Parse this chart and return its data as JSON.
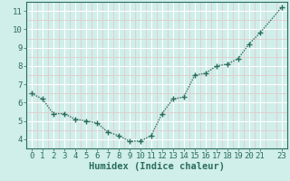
{
  "x": [
    0,
    1,
    2,
    3,
    4,
    5,
    6,
    7,
    8,
    9,
    10,
    11,
    12,
    13,
    14,
    15,
    16,
    17,
    18,
    19,
    20,
    21,
    23
  ],
  "y": [
    6.5,
    6.2,
    5.4,
    5.4,
    5.1,
    5.0,
    4.9,
    4.4,
    4.2,
    3.9,
    3.9,
    4.2,
    5.4,
    6.2,
    6.3,
    7.5,
    7.6,
    8.0,
    8.1,
    8.4,
    9.2,
    9.8,
    11.2
  ],
  "line_color": "#2b6e5e",
  "bg_color": "#d0eeea",
  "grid_color_major": "#ffffff",
  "grid_color_minor": "#e0cccc",
  "xlabel": "Humidex (Indice chaleur)",
  "xlim": [
    -0.5,
    23.5
  ],
  "ylim": [
    3.5,
    11.5
  ],
  "yticks": [
    4,
    5,
    6,
    7,
    8,
    9,
    10,
    11
  ],
  "xticks": [
    0,
    1,
    2,
    3,
    4,
    5,
    6,
    7,
    8,
    9,
    10,
    11,
    12,
    13,
    14,
    15,
    16,
    17,
    18,
    19,
    20,
    21,
    23
  ],
  "marker": "+",
  "linewidth": 1.0,
  "markersize": 4,
  "xlabel_fontsize": 7.5,
  "tick_fontsize": 6.5
}
